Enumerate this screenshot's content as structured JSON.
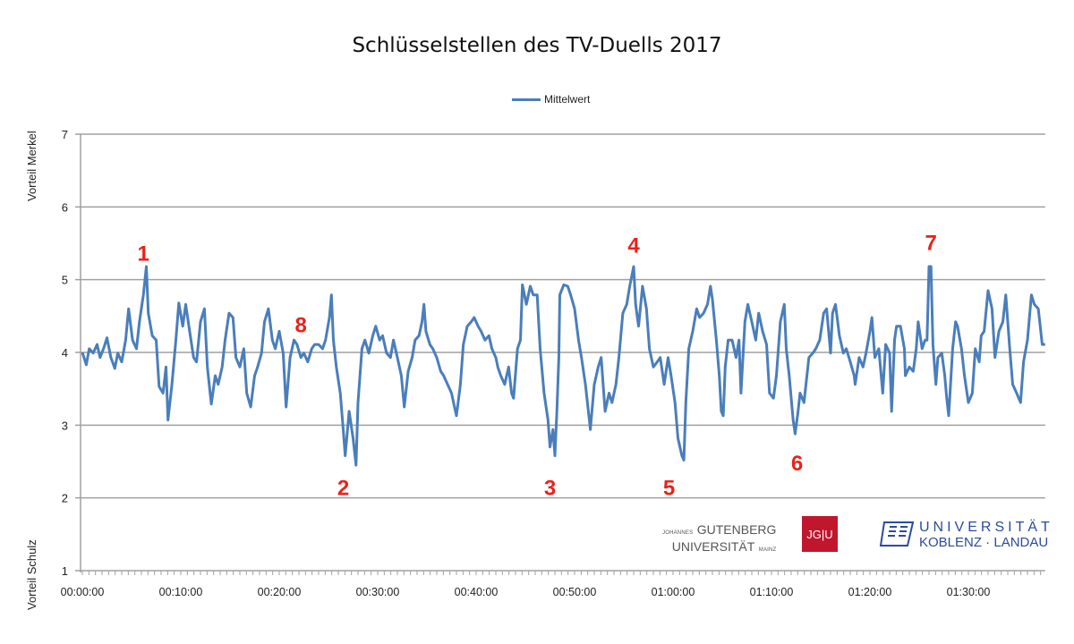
{
  "chart_data": {
    "type": "line",
    "title": "Schlüsselstellen des TV-Duells 2017",
    "ylabel_top": "Vorteil Merkel",
    "ylabel_bottom": "Vorteil Schulz",
    "xlabel": "",
    "ylim": [
      1,
      7
    ],
    "yticks": [
      "1",
      "2",
      "3",
      "4",
      "5",
      "6",
      "7"
    ],
    "xlim_minutes": [
      0,
      97.8
    ],
    "xticks": [
      "00:00:00",
      "00:10:00",
      "00:20:00",
      "00:30:00",
      "00:40:00",
      "00:50:00",
      "01:00:00",
      "01:10:00",
      "01:20:00",
      "01:30:00"
    ],
    "grid": "horizontal",
    "legend_position": "top",
    "series": [
      {
        "name": "Mittelwert",
        "color": "#4a7ebb",
        "x": [
          0.0,
          0.4,
          0.7,
          1.1,
          1.5,
          1.8,
          2.2,
          2.5,
          2.9,
          3.3,
          3.6,
          4.0,
          4.4,
          4.7,
          5.1,
          5.5,
          5.8,
          6.2,
          6.5,
          6.7,
          7.1,
          7.5,
          7.8,
          8.2,
          8.5,
          8.7,
          9.1,
          9.5,
          9.8,
          10.2,
          10.5,
          10.9,
          11.3,
          11.6,
          12.0,
          12.4,
          12.7,
          13.1,
          13.5,
          13.8,
          14.2,
          14.5,
          14.9,
          15.3,
          15.6,
          16.0,
          16.4,
          16.7,
          17.1,
          17.5,
          17.8,
          18.2,
          18.5,
          18.9,
          19.3,
          19.6,
          20.0,
          20.4,
          20.7,
          21.1,
          21.5,
          21.8,
          22.2,
          22.5,
          22.9,
          23.3,
          23.6,
          24.0,
          24.4,
          24.7,
          25.1,
          25.3,
          25.5,
          25.8,
          26.2,
          26.5,
          26.7,
          27.1,
          27.5,
          27.8,
          28.0,
          28.4,
          28.7,
          29.1,
          29.5,
          29.8,
          30.2,
          30.5,
          30.9,
          31.3,
          31.6,
          32.0,
          32.4,
          32.7,
          33.1,
          33.5,
          33.8,
          34.2,
          34.5,
          34.7,
          34.9,
          35.3,
          35.6,
          36.0,
          36.4,
          36.7,
          37.1,
          37.5,
          37.8,
          38.0,
          38.4,
          38.7,
          39.1,
          39.5,
          39.8,
          40.2,
          40.5,
          40.9,
          41.3,
          41.6,
          42.0,
          42.2,
          42.5,
          42.9,
          43.3,
          43.6,
          43.8,
          44.2,
          44.5,
          44.7,
          45.1,
          45.5,
          45.8,
          46.2,
          46.5,
          46.9,
          47.3,
          47.5,
          47.8,
          48.0,
          48.2,
          48.4,
          48.5,
          48.9,
          49.3,
          49.6,
          50.0,
          50.4,
          50.7,
          51.1,
          51.5,
          51.6,
          52.0,
          52.4,
          52.7,
          53.1,
          53.5,
          53.8,
          54.2,
          54.5,
          54.9,
          55.3,
          55.6,
          56.0,
          56.2,
          56.5,
          56.9,
          57.3,
          57.6,
          58.0,
          58.4,
          58.7,
          59.1,
          59.5,
          59.8,
          60.2,
          60.5,
          60.9,
          61.1,
          61.3,
          61.6,
          62.0,
          62.4,
          62.7,
          63.1,
          63.5,
          63.8,
          64.0,
          64.4,
          64.7,
          64.9,
          65.1,
          65.3,
          65.6,
          66.0,
          66.4,
          66.7,
          66.9,
          67.3,
          67.6,
          68.0,
          68.4,
          68.7,
          69.1,
          69.5,
          69.8,
          70.2,
          70.5,
          70.9,
          71.3,
          71.5,
          71.8,
          72.2,
          72.4,
          72.7,
          72.9,
          73.3,
          73.6,
          73.8,
          74.2,
          74.5,
          74.9,
          75.3,
          75.6,
          76.0,
          76.2,
          76.5,
          76.9,
          77.3,
          77.6,
          78.0,
          78.4,
          78.5,
          78.9,
          79.3,
          79.6,
          80.0,
          80.2,
          80.5,
          80.9,
          81.3,
          81.6,
          82.0,
          82.2,
          82.5,
          82.7,
          83.1,
          83.5,
          83.6,
          84.0,
          84.4,
          84.7,
          84.9,
          85.3,
          85.6,
          85.8,
          86.0,
          86.2,
          86.4,
          86.7,
          86.9,
          87.3,
          87.6,
          87.8,
          88.0,
          88.4,
          88.7,
          88.9,
          89.3,
          89.6,
          90.0,
          90.4,
          90.7,
          91.1,
          91.3,
          91.6,
          92.0,
          92.4,
          92.7,
          93.1,
          93.5,
          93.8,
          94.2,
          94.5,
          94.9,
          95.3,
          95.6,
          96.0,
          96.4,
          96.7,
          97.1,
          97.5,
          97.8
        ],
        "values": [
          4.0,
          3.83,
          4.05,
          3.99,
          4.11,
          3.93,
          4.07,
          4.2,
          3.93,
          3.78,
          3.99,
          3.87,
          4.17,
          4.6,
          4.17,
          4.05,
          4.42,
          4.79,
          5.18,
          4.54,
          4.23,
          4.17,
          3.53,
          3.44,
          3.8,
          3.07,
          3.56,
          4.17,
          4.68,
          4.36,
          4.66,
          4.29,
          3.93,
          3.87,
          4.42,
          4.6,
          3.8,
          3.29,
          3.68,
          3.56,
          3.8,
          4.17,
          4.54,
          4.48,
          3.93,
          3.8,
          4.05,
          3.44,
          3.25,
          3.68,
          3.8,
          3.99,
          4.42,
          4.6,
          4.17,
          4.05,
          4.29,
          3.99,
          3.25,
          3.93,
          4.17,
          4.11,
          3.93,
          3.99,
          3.87,
          4.05,
          4.11,
          4.11,
          4.05,
          4.17,
          4.48,
          4.79,
          4.17,
          3.8,
          3.44,
          2.94,
          2.58,
          3.19,
          2.82,
          2.45,
          3.31,
          4.05,
          4.17,
          3.99,
          4.23,
          4.36,
          4.17,
          4.23,
          3.99,
          3.93,
          4.17,
          3.93,
          3.68,
          3.25,
          3.74,
          3.93,
          4.17,
          4.23,
          4.42,
          4.66,
          4.29,
          4.11,
          4.05,
          3.93,
          3.74,
          3.68,
          3.56,
          3.44,
          3.25,
          3.13,
          3.56,
          4.11,
          4.36,
          4.42,
          4.48,
          4.36,
          4.29,
          4.17,
          4.23,
          4.05,
          3.93,
          3.8,
          3.68,
          3.56,
          3.8,
          3.44,
          3.37,
          4.05,
          4.17,
          4.93,
          4.66,
          4.91,
          4.79,
          4.79,
          4.05,
          3.44,
          3.07,
          2.7,
          2.94,
          2.58,
          3.19,
          3.93,
          4.79,
          4.93,
          4.91,
          4.79,
          4.6,
          4.17,
          3.93,
          3.56,
          3.07,
          2.94,
          3.56,
          3.8,
          3.93,
          3.19,
          3.44,
          3.31,
          3.56,
          3.93,
          4.54,
          4.66,
          4.91,
          5.18,
          4.66,
          4.36,
          4.91,
          4.6,
          4.05,
          3.8,
          3.87,
          3.93,
          3.56,
          3.93,
          3.68,
          3.31,
          2.82,
          2.58,
          2.52,
          3.31,
          4.05,
          4.29,
          4.6,
          4.48,
          4.54,
          4.66,
          4.91,
          4.73,
          4.17,
          3.68,
          3.19,
          3.13,
          3.8,
          4.17,
          4.17,
          3.93,
          4.17,
          3.44,
          4.42,
          4.66,
          4.42,
          4.17,
          4.54,
          4.29,
          4.11,
          3.44,
          3.37,
          3.68,
          4.42,
          4.66,
          4.05,
          3.68,
          3.07,
          2.88,
          3.19,
          3.44,
          3.31,
          3.68,
          3.93,
          3.99,
          4.05,
          4.17,
          4.54,
          4.6,
          3.99,
          4.54,
          4.66,
          4.23,
          3.99,
          4.05,
          3.87,
          3.68,
          3.56,
          3.93,
          3.8,
          3.99,
          4.29,
          4.48,
          3.93,
          4.05,
          3.44,
          4.11,
          3.99,
          3.19,
          4.17,
          4.36,
          4.36,
          4.05,
          3.68,
          3.8,
          3.74,
          4.05,
          4.42,
          4.05,
          4.17,
          4.17,
          5.18,
          5.18,
          4.11,
          3.56,
          3.93,
          3.99,
          3.68,
          3.37,
          3.13,
          4.05,
          4.42,
          4.36,
          4.05,
          3.68,
          3.31,
          3.44,
          4.05,
          3.87,
          4.23,
          4.29,
          4.85,
          4.6,
          3.93,
          4.29,
          4.42,
          4.79,
          4.05,
          3.56,
          3.44,
          3.31,
          3.87,
          4.17,
          4.79,
          4.66,
          4.6,
          4.11,
          4.11
        ]
      }
    ],
    "annotations": [
      {
        "label": "1",
        "x": 6.2,
        "y": 5.37
      },
      {
        "label": "2",
        "x": 26.5,
        "y": 2.15
      },
      {
        "label": "3",
        "x": 47.5,
        "y": 2.15
      },
      {
        "label": "4",
        "x": 56.0,
        "y": 5.48
      },
      {
        "label": "5",
        "x": 59.6,
        "y": 2.15
      },
      {
        "label": "6",
        "x": 72.6,
        "y": 2.49
      },
      {
        "label": "7",
        "x": 86.2,
        "y": 5.52
      },
      {
        "label": "8",
        "x": 22.2,
        "y": 4.39
      }
    ],
    "annotation_color": "#e8221b"
  },
  "logos": {
    "jgu_small": "JOHANNES",
    "jgu_line1": "GUTENBERG",
    "jgu_line2": "UNIVERSITÄT",
    "jgu_mainz": "MAINZ",
    "jgu_mark": "JG|U",
    "jgu_color": "#c0172d",
    "kl_line1": "UNIVERSITÄT",
    "kl_line2": "KOBLENZ · LANDAU",
    "kl_color": "#2a4c9a"
  }
}
